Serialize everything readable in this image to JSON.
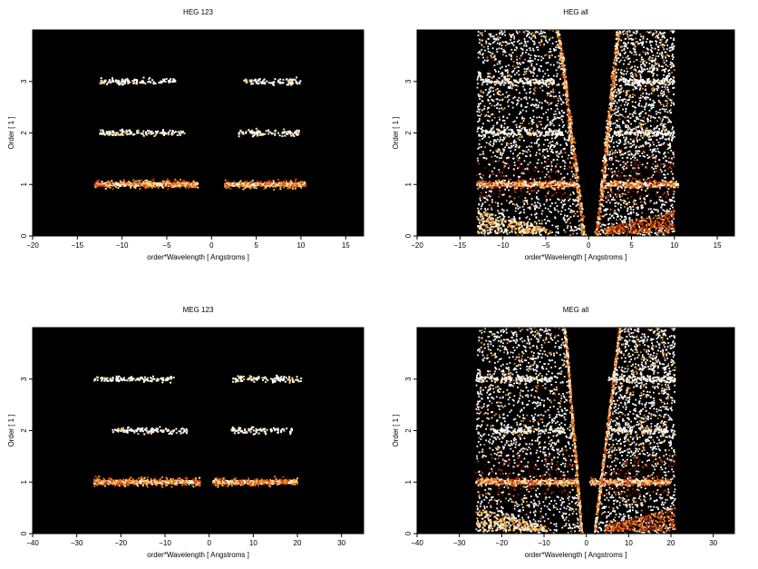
{
  "chart_data": [
    {
      "type": "heatmap",
      "title": "HEG 123",
      "xlabel": "order*Wavelength [ Angstroms ]",
      "ylabel": "Order [ 1 ]",
      "xlim": [
        -20,
        17
      ],
      "ylim": [
        0,
        4
      ],
      "xticks": [
        -20,
        -15,
        -10,
        -5,
        0,
        5,
        10,
        15
      ],
      "yticks": [
        0,
        1,
        2,
        3
      ],
      "background": "#000000",
      "colormap": [
        "#3a0a00",
        "#8b1a00",
        "#d2420a",
        "#f08c1e",
        "#ffd27a",
        "#ffffff"
      ],
      "bands": [
        {
          "order": 1,
          "x_ranges": [
            [
              -13,
              -1.5
            ],
            [
              1.5,
              10.5
            ]
          ],
          "intensity": "high"
        },
        {
          "order": 2,
          "x_ranges": [
            [
              -12.5,
              -3
            ],
            [
              3,
              10
            ]
          ],
          "intensity": "low"
        },
        {
          "order": 3,
          "x_ranges": [
            [
              -12.5,
              -4
            ],
            [
              3.5,
              10
            ]
          ],
          "intensity": "low"
        }
      ],
      "wedges": []
    },
    {
      "type": "heatmap",
      "title": "HEG all",
      "xlabel": "order*Wavelength [ Angstroms ]",
      "ylabel": "Order [ 1 ]",
      "xlim": [
        -20,
        17
      ],
      "ylim": [
        0,
        4
      ],
      "xticks": [
        -20,
        -15,
        -10,
        -5,
        0,
        5,
        10,
        15
      ],
      "yticks": [
        0,
        1,
        2,
        3
      ],
      "background": "#000000",
      "colormap": [
        "#3a0a00",
        "#8b1a00",
        "#d2420a",
        "#f08c1e",
        "#ffd27a",
        "#ffffff"
      ],
      "bands": [
        {
          "order": 1,
          "x_ranges": [
            [
              -13,
              -1.5
            ],
            [
              1.5,
              10.5
            ]
          ],
          "intensity": "high"
        },
        {
          "order": 2,
          "x_ranges": [
            [
              -12.5,
              -3
            ],
            [
              3,
              10
            ]
          ],
          "intensity": "low"
        },
        {
          "order": 3,
          "x_ranges": [
            [
              -12.5,
              -4
            ],
            [
              3.5,
              10
            ]
          ],
          "intensity": "low"
        }
      ],
      "wedges": [
        {
          "side": "left",
          "x_top": [
            -13,
            -3.5
          ],
          "x_bottom": [
            -13,
            -0.5
          ]
        },
        {
          "side": "right",
          "x_top": [
            3.5,
            10
          ],
          "x_bottom": [
            1,
            10
          ]
        }
      ]
    },
    {
      "type": "heatmap",
      "title": "MEG 123",
      "xlabel": "order*Wavelength [ Angstroms ]",
      "ylabel": "Order [ 1 ]",
      "xlim": [
        -40,
        35
      ],
      "ylim": [
        0,
        4
      ],
      "xticks": [
        -40,
        -30,
        -20,
        -10,
        0,
        10,
        20,
        30
      ],
      "yticks": [
        0,
        1,
        2,
        3
      ],
      "background": "#000000",
      "colormap": [
        "#3a0a00",
        "#8b1a00",
        "#d2420a",
        "#f08c1e",
        "#ffd27a",
        "#ffffff"
      ],
      "bands": [
        {
          "order": 1,
          "x_ranges": [
            [
              -26,
              -2
            ],
            [
              1,
              20
            ]
          ],
          "intensity": "high"
        },
        {
          "order": 2,
          "x_ranges": [
            [
              -22,
              -5
            ],
            [
              5,
              19
            ]
          ],
          "intensity": "low"
        },
        {
          "order": 3,
          "x_ranges": [
            [
              -26,
              -8
            ],
            [
              5,
              21
            ]
          ],
          "intensity": "low"
        }
      ],
      "wedges": []
    },
    {
      "type": "heatmap",
      "title": "MEG all",
      "xlabel": "order*Wavelength [ Angstroms ]",
      "ylabel": "Order [ 1 ]",
      "xlim": [
        -40,
        35
      ],
      "ylim": [
        0,
        4
      ],
      "xticks": [
        -40,
        -30,
        -20,
        -10,
        0,
        10,
        20,
        30
      ],
      "yticks": [
        0,
        1,
        2,
        3
      ],
      "background": "#000000",
      "colormap": [
        "#3a0a00",
        "#8b1a00",
        "#d2420a",
        "#f08c1e",
        "#ffd27a",
        "#ffffff"
      ],
      "bands": [
        {
          "order": 1,
          "x_ranges": [
            [
              -26,
              -2
            ],
            [
              1,
              20
            ]
          ],
          "intensity": "high"
        },
        {
          "order": 2,
          "x_ranges": [
            [
              -22,
              -5
            ],
            [
              5,
              19
            ]
          ],
          "intensity": "low"
        },
        {
          "order": 3,
          "x_ranges": [
            [
              -26,
              -8
            ],
            [
              5,
              21
            ]
          ],
          "intensity": "low"
        }
      ],
      "wedges": [
        {
          "side": "left",
          "x_top": [
            -26,
            -5
          ],
          "x_bottom": [
            -26,
            -1
          ]
        },
        {
          "side": "right",
          "x_top": [
            8,
            21
          ],
          "x_bottom": [
            2,
            21
          ]
        }
      ]
    }
  ]
}
